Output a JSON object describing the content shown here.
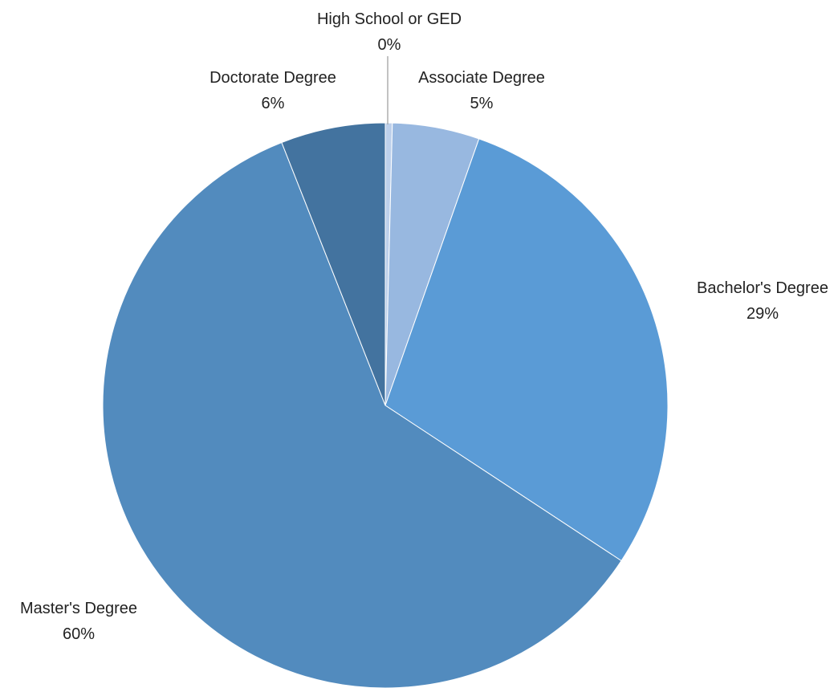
{
  "chart_data": {
    "type": "pie",
    "title": "",
    "categories": [
      "High School or GED",
      "Associate Degree",
      "Bachelor's Degree",
      "Master's Degree",
      "Doctorate Degree"
    ],
    "values": [
      0.4,
      5,
      29,
      60,
      6
    ],
    "labels": [
      "0%",
      "5%",
      "29%",
      "60%",
      "6%"
    ],
    "colors": [
      "#bdd0eb",
      "#98b8e0",
      "#5a9bd6",
      "#528bbe",
      "#43739f"
    ],
    "start_angle_deg": 0,
    "direction": "clockwise",
    "legend": "none",
    "data_labels": "category name and percentage, outside"
  }
}
